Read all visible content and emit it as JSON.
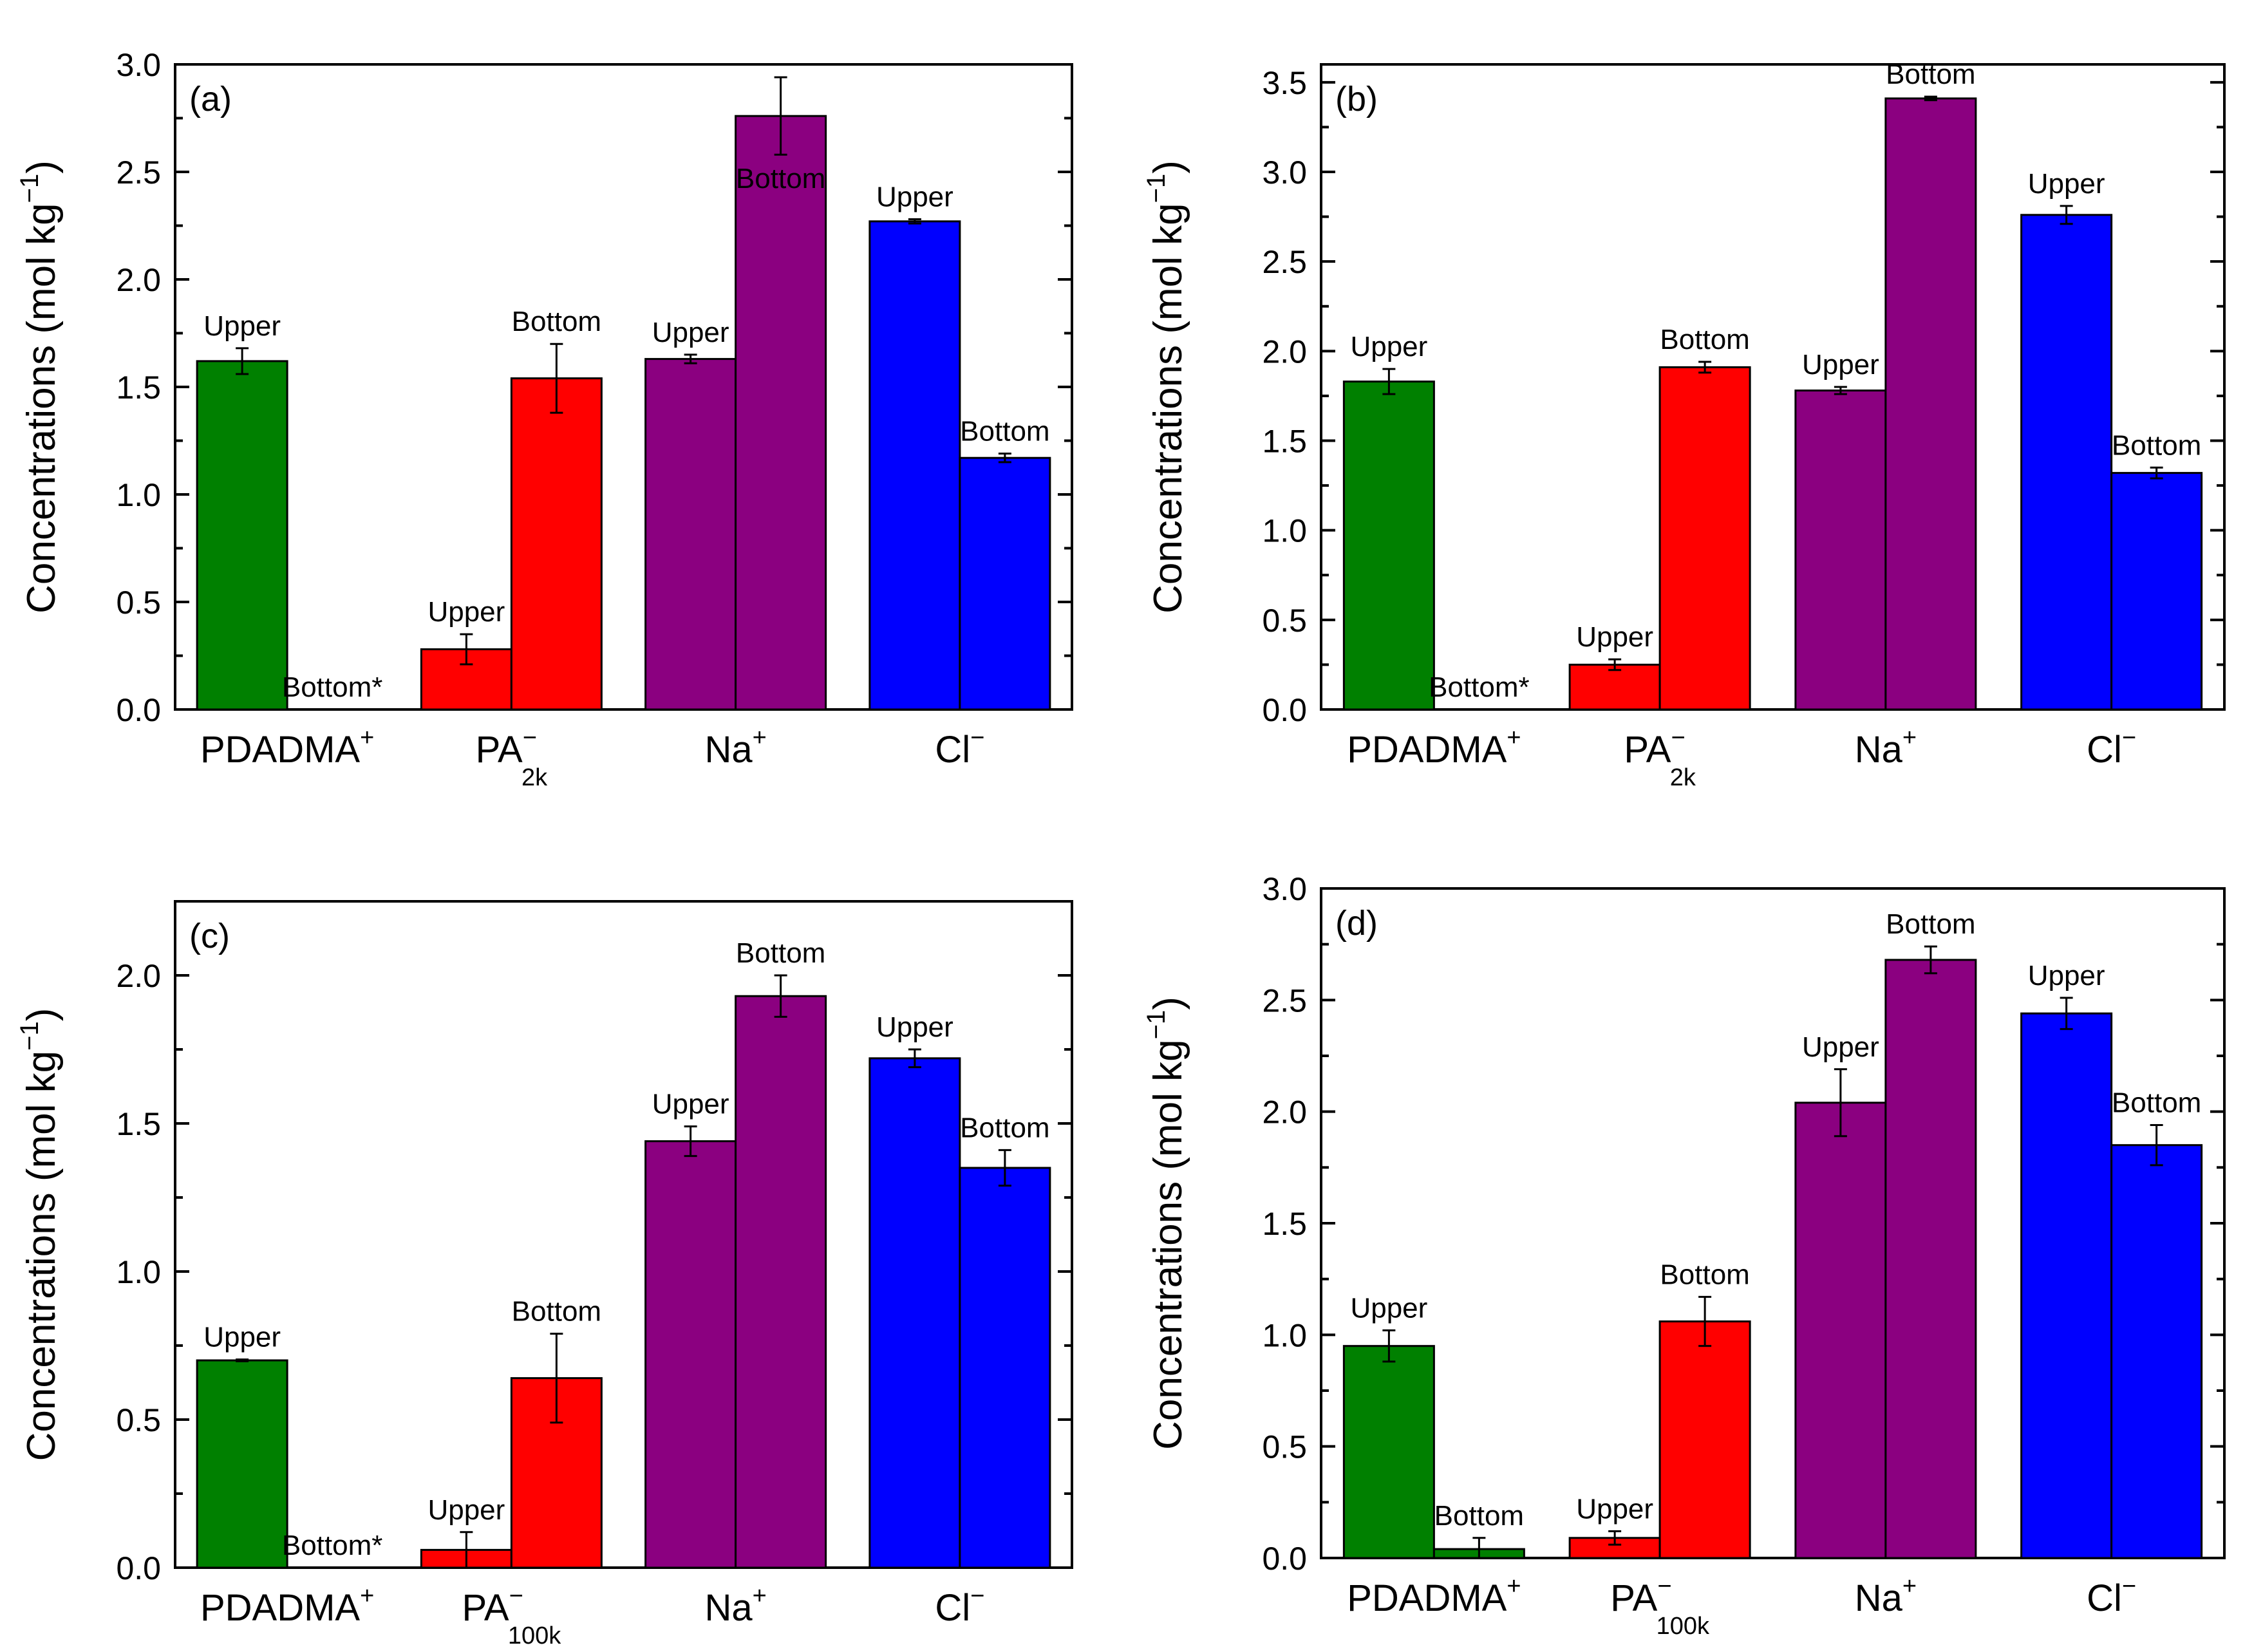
{
  "chart_data": [
    {
      "panel_label": "(a)",
      "type": "bar",
      "ylabel": "Concentrations (mol kg⁻¹)",
      "ylim": [
        0,
        3.0
      ],
      "yticks": [
        0.0,
        0.5,
        1.0,
        1.5,
        2.0,
        2.5,
        3.0
      ],
      "ytick_labels": [
        "0.0",
        "0.5",
        "1.0",
        "1.5",
        "2.0",
        "2.5",
        "3.0"
      ],
      "categories": [
        {
          "label": "PDADMA",
          "sup": "+",
          "sub": ""
        },
        {
          "label": "PA",
          "sup": "−",
          "sub": "2k"
        },
        {
          "label": "Na",
          "sup": "+",
          "sub": ""
        },
        {
          "label": "Cl",
          "sup": "−",
          "sub": ""
        }
      ],
      "colors": [
        "#008000",
        "#ff0000",
        "#8b0080",
        "#0000ff"
      ],
      "series": [
        {
          "name": "Upper",
          "values": [
            1.62,
            0.28,
            1.63,
            2.27
          ],
          "errors": [
            0.06,
            0.07,
            0.02,
            0.01
          ],
          "labels": [
            "Upper",
            "Upper",
            "Upper",
            "Upper"
          ]
        },
        {
          "name": "Bottom",
          "values": [
            0.0,
            1.54,
            2.76,
            1.17
          ],
          "errors": [
            0.0,
            0.16,
            0.18,
            0.02
          ],
          "labels": [
            "Bottom*",
            "Bottom",
            "Bottom",
            "Bottom"
          ]
        }
      ]
    },
    {
      "panel_label": "(b)",
      "type": "bar",
      "ylabel": "Concentrations (mol kg⁻¹)",
      "ylim": [
        0,
        3.6
      ],
      "yticks": [
        0.0,
        0.5,
        1.0,
        1.5,
        2.0,
        2.5,
        3.0,
        3.5
      ],
      "ytick_labels": [
        "0.0",
        "0.5",
        "1.0",
        "1.5",
        "2.0",
        "2.5",
        "3.0",
        "3.5"
      ],
      "categories": [
        {
          "label": "PDADMA",
          "sup": "+",
          "sub": ""
        },
        {
          "label": "PA",
          "sup": "−",
          "sub": "2k"
        },
        {
          "label": "Na",
          "sup": "+",
          "sub": ""
        },
        {
          "label": "Cl",
          "sup": "−",
          "sub": ""
        }
      ],
      "colors": [
        "#008000",
        "#ff0000",
        "#8b0080",
        "#0000ff"
      ],
      "series": [
        {
          "name": "Upper",
          "values": [
            1.83,
            0.25,
            1.78,
            2.76
          ],
          "errors": [
            0.07,
            0.03,
            0.02,
            0.05
          ],
          "labels": [
            "Upper",
            "Upper",
            "Upper",
            "Upper"
          ]
        },
        {
          "name": "Bottom",
          "values": [
            0.0,
            1.91,
            3.41,
            1.32
          ],
          "errors": [
            0.0,
            0.03,
            0.01,
            0.03
          ],
          "labels": [
            "Bottom*",
            "Bottom",
            "Bottom",
            "Bottom"
          ]
        }
      ]
    },
    {
      "panel_label": "(c)",
      "type": "bar",
      "ylabel": "Concentrations (mol kg⁻¹)",
      "ylim": [
        0,
        2.25
      ],
      "yticks": [
        0.0,
        0.5,
        1.0,
        1.5,
        2.0
      ],
      "ytick_labels": [
        "0.0",
        "0.5",
        "1.0",
        "1.5",
        "2.0"
      ],
      "categories": [
        {
          "label": "PDADMA",
          "sup": "+",
          "sub": ""
        },
        {
          "label": "PA",
          "sup": "−",
          "sub": "100k"
        },
        {
          "label": "Na",
          "sup": "+",
          "sub": ""
        },
        {
          "label": "Cl",
          "sup": "−",
          "sub": ""
        }
      ],
      "colors": [
        "#008000",
        "#ff0000",
        "#8b0080",
        "#0000ff"
      ],
      "series": [
        {
          "name": "Upper",
          "values": [
            0.7,
            0.06,
            1.44,
            1.72
          ],
          "errors": [
            0.003,
            0.06,
            0.05,
            0.03
          ],
          "labels": [
            "Upper",
            "Upper",
            "Upper",
            "Upper"
          ]
        },
        {
          "name": "Bottom",
          "values": [
            0.0,
            0.64,
            1.93,
            1.35
          ],
          "errors": [
            0.0,
            0.15,
            0.07,
            0.06
          ],
          "labels": [
            "Bottom*",
            "Bottom",
            "Bottom",
            "Bottom"
          ]
        }
      ]
    },
    {
      "panel_label": "(d)",
      "type": "bar",
      "ylabel": "Concentrations (mol kg⁻¹)",
      "ylim": [
        0,
        3.0
      ],
      "yticks": [
        0.0,
        0.5,
        1.0,
        1.5,
        2.0,
        2.5,
        3.0
      ],
      "ytick_labels": [
        "0.0",
        "0.5",
        "1.0",
        "1.5",
        "2.0",
        "2.5",
        "3.0"
      ],
      "categories": [
        {
          "label": "PDADMA",
          "sup": "+",
          "sub": ""
        },
        {
          "label": "PA",
          "sup": "−",
          "sub": "100k"
        },
        {
          "label": "Na",
          "sup": "+",
          "sub": ""
        },
        {
          "label": "Cl",
          "sup": "−",
          "sub": ""
        }
      ],
      "colors": [
        "#008000",
        "#ff0000",
        "#8b0080",
        "#0000ff"
      ],
      "series": [
        {
          "name": "Upper",
          "values": [
            0.95,
            0.09,
            2.04,
            2.44
          ],
          "errors": [
            0.07,
            0.03,
            0.15,
            0.07
          ],
          "labels": [
            "Upper",
            "Upper",
            "Upper",
            "Upper"
          ]
        },
        {
          "name": "Bottom",
          "values": [
            0.04,
            1.06,
            2.68,
            1.85
          ],
          "errors": [
            0.05,
            0.11,
            0.06,
            0.09
          ],
          "labels": [
            "Bottom",
            "Bottom",
            "Bottom",
            "Bottom"
          ]
        }
      ]
    }
  ]
}
